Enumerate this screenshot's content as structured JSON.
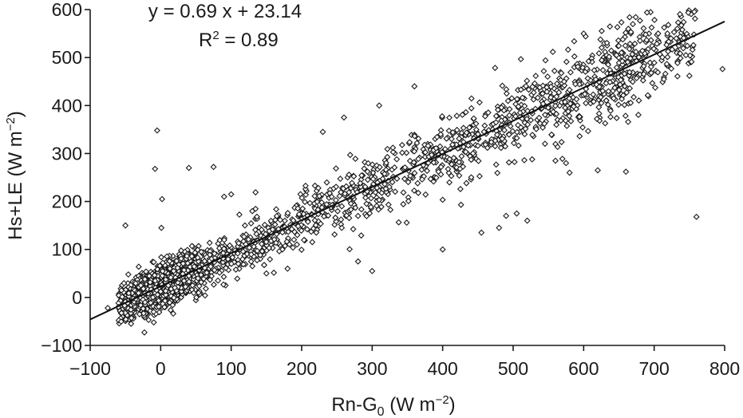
{
  "chart_data": {
    "type": "scatter",
    "xlabel": "Rn-G",
    "xlabel_subscript": "0",
    "xlabel_units": " (W m",
    "xlabel_units_exp": "−2",
    "xlabel_units_close": ")",
    "ylabel": "Hs+LE (W m",
    "ylabel_exp": "−2",
    "ylabel_close": ")",
    "xlim": [
      -100,
      800
    ],
    "ylim": [
      -100,
      600
    ],
    "x_ticks": [
      -100,
      0,
      100,
      200,
      300,
      400,
      500,
      600,
      700,
      800
    ],
    "y_ticks": [
      -100,
      0,
      100,
      200,
      300,
      400,
      500,
      600
    ],
    "x_tick_labels": [
      "−100",
      "0",
      "100",
      "200",
      "300",
      "400",
      "500",
      "600",
      "700",
      "800"
    ],
    "y_tick_labels": [
      "−100",
      "0",
      "100",
      "200",
      "300",
      "400",
      "500",
      "600"
    ],
    "marker": "open-diamond",
    "grid": false,
    "fit_line": {
      "slope": 0.69,
      "intercept": 23.14,
      "x_range": [
        -100,
        800
      ]
    },
    "equation_text": "y = 0.69 x + 23.14",
    "r2_label": "R",
    "r2_exp": "2",
    "r2_value_text": " = 0.89",
    "point_cloud": {
      "count": 2600,
      "x_range": [
        -60,
        800
      ],
      "density_peak_x": 0,
      "residual_sd_low_x": 20,
      "residual_sd_high_x": 45
    },
    "series": [
      {
        "values": [
          [
            -5,
            348
          ],
          [
            -8,
            268
          ],
          [
            2,
            205
          ],
          [
            1,
            145
          ],
          [
            -50,
            150
          ],
          [
            40,
            270
          ],
          [
            75,
            272
          ],
          [
            760,
            168
          ],
          [
            797,
            476
          ],
          [
            750,
            462
          ],
          [
            745,
            505
          ],
          [
            720,
            568
          ],
          [
            680,
            535
          ],
          [
            600,
            550
          ],
          [
            575,
            280
          ],
          [
            580,
            260
          ],
          [
            620,
            265
          ],
          [
            660,
            262
          ],
          [
            560,
            285
          ],
          [
            520,
            160
          ],
          [
            505,
            175
          ],
          [
            490,
            170
          ],
          [
            455,
            135
          ],
          [
            480,
            145
          ],
          [
            360,
            440
          ],
          [
            310,
            400
          ],
          [
            260,
            375
          ],
          [
            230,
            345
          ],
          [
            400,
            100
          ],
          [
            300,
            55
          ],
          [
            280,
            75
          ],
          [
            180,
            60
          ],
          [
            150,
            50
          ],
          [
            130,
            180
          ],
          [
            100,
            215
          ],
          [
            90,
            210
          ],
          [
            -60,
            -20
          ],
          [
            -75,
            -22
          ],
          [
            -30,
            -35
          ],
          [
            -10,
            -30
          ]
        ]
      }
    ]
  }
}
